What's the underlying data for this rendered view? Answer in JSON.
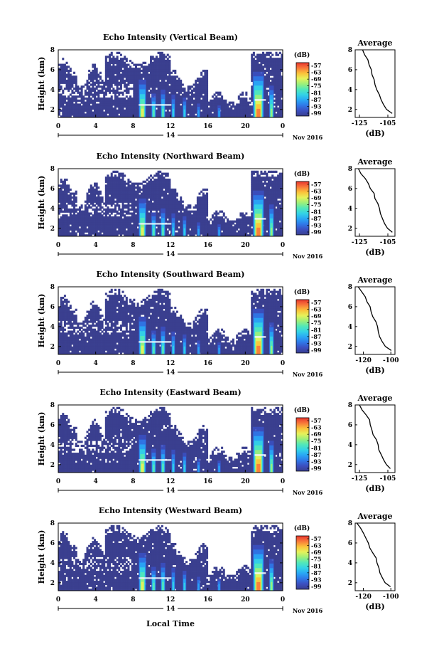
{
  "colors": {
    "background": "#ffffff",
    "low_echo": "#3a3f8f",
    "colormap": [
      "#3a3f8f",
      "#3b4fc0",
      "#2f78e8",
      "#29a7f5",
      "#33d3e6",
      "#52e8b8",
      "#9cf07a",
      "#e6f25a",
      "#fbc23a",
      "#f8783a",
      "#e8362e"
    ]
  },
  "x_axis_label": "Local Time",
  "date_label": "Nov 2016",
  "day_label": "14",
  "colorbar_unit": "(dB)",
  "colorbar_ticks": [
    "-57",
    "-63",
    "-69",
    "-75",
    "-81",
    "-87",
    "-93",
    "-99"
  ],
  "chart_data": [
    {
      "type": "heatmap",
      "title": "Echo Intensity (Vertical Beam)",
      "ylabel": "Height (km)",
      "x_ticks": [
        "0",
        "4",
        "8",
        "12",
        "16",
        "20",
        "0"
      ],
      "y_ticks": [
        "2",
        "4",
        "6",
        "8"
      ],
      "xlim": [
        0,
        24
      ],
      "ylim": [
        1.2,
        8
      ],
      "color_range_db": [
        -99,
        -57
      ],
      "profile": {
        "title": "Average",
        "xlabel": "(dB)",
        "x_ticks": [
          "-125",
          "-105"
        ],
        "xlim": [
          -128,
          -100
        ],
        "y_ticks": [
          "2",
          "4",
          "6",
          "8"
        ],
        "height": [
          1.6,
          2.0,
          2.5,
          3.0,
          3.5,
          4.0,
          4.5,
          5.0,
          5.5,
          6.0,
          6.5,
          7.0,
          7.5,
          8.0
        ],
        "value_db": [
          -102,
          -106,
          -108,
          -110,
          -111,
          -113,
          -114,
          -115,
          -116,
          -117,
          -118,
          -119,
          -121,
          -123
        ]
      }
    },
    {
      "type": "heatmap",
      "title": "Echo Intensity (Northward Beam)",
      "ylabel": "Height (km)",
      "x_ticks": [
        "0",
        "4",
        "8",
        "12",
        "16",
        "20",
        "0"
      ],
      "y_ticks": [
        "2",
        "4",
        "6",
        "8"
      ],
      "xlim": [
        0,
        24
      ],
      "ylim": [
        1.2,
        8
      ],
      "color_range_db": [
        -99,
        -57
      ],
      "profile": {
        "title": "Average",
        "xlabel": "(dB)",
        "x_ticks": [
          "-125",
          "-105"
        ],
        "xlim": [
          -128,
          -100
        ],
        "y_ticks": [
          "2",
          "4",
          "6",
          "8"
        ],
        "height": [
          1.6,
          2.0,
          2.5,
          3.0,
          3.5,
          4.0,
          4.5,
          5.0,
          5.5,
          6.0,
          6.5,
          7.0,
          7.5,
          8.0
        ],
        "value_db": [
          -102,
          -105,
          -107,
          -109,
          -110,
          -111,
          -112,
          -114,
          -115,
          -117,
          -119,
          -121,
          -124,
          -126
        ]
      }
    },
    {
      "type": "heatmap",
      "title": "Echo Intensity (Southward Beam)",
      "ylabel": "Height (km)",
      "x_ticks": [
        "0",
        "4",
        "8",
        "12",
        "16",
        "20",
        "0"
      ],
      "y_ticks": [
        "2",
        "4",
        "6",
        "8"
      ],
      "xlim": [
        0,
        24
      ],
      "ylim": [
        1.2,
        8
      ],
      "color_range_db": [
        -99,
        -57
      ],
      "profile": {
        "title": "Average",
        "xlabel": "(dB)",
        "x_ticks": [
          "-120",
          "-100"
        ],
        "xlim": [
          -126,
          -97
        ],
        "y_ticks": [
          "2",
          "4",
          "6",
          "8"
        ],
        "height": [
          1.6,
          2.0,
          2.5,
          3.0,
          3.5,
          4.0,
          4.5,
          5.0,
          5.5,
          6.0,
          6.5,
          7.0,
          7.5,
          8.0
        ],
        "value_db": [
          -100,
          -104,
          -106,
          -108,
          -109,
          -110,
          -111,
          -113,
          -114,
          -115,
          -117,
          -119,
          -121,
          -124
        ]
      }
    },
    {
      "type": "heatmap",
      "title": "Echo Intensity (Eastward Beam)",
      "ylabel": "Height (km)",
      "x_ticks": [
        "0",
        "4",
        "8",
        "12",
        "16",
        "20",
        "0"
      ],
      "y_ticks": [
        "2",
        "4",
        "6",
        "8"
      ],
      "xlim": [
        0,
        24
      ],
      "ylim": [
        1.2,
        8
      ],
      "color_range_db": [
        -99,
        -57
      ],
      "profile": {
        "title": "Average",
        "xlabel": "(dB)",
        "x_ticks": [
          "-125",
          "-105"
        ],
        "xlim": [
          -128,
          -100
        ],
        "y_ticks": [
          "2",
          "4",
          "6",
          "8"
        ],
        "height": [
          1.6,
          2.0,
          2.5,
          3.0,
          3.5,
          4.0,
          4.5,
          5.0,
          5.5,
          6.0,
          6.5,
          7.0,
          7.5,
          8.0
        ],
        "value_db": [
          -103,
          -106,
          -108,
          -110,
          -111,
          -112,
          -113,
          -115,
          -116,
          -117,
          -118,
          -120,
          -123,
          -125
        ]
      }
    },
    {
      "type": "heatmap",
      "title": "Echo Intensity (Westward Beam)",
      "ylabel": "Height (km)",
      "x_ticks": [
        "0",
        "4",
        "8",
        "12",
        "16",
        "20",
        "0"
      ],
      "y_ticks": [
        "2",
        "4",
        "6",
        "8"
      ],
      "xlim": [
        0,
        24
      ],
      "ylim": [
        1.2,
        8
      ],
      "color_range_db": [
        -99,
        -57
      ],
      "profile": {
        "title": "Average",
        "xlabel": "(dB)",
        "x_ticks": [
          "-120",
          "-100"
        ],
        "xlim": [
          -126,
          -97
        ],
        "y_ticks": [
          "2",
          "4",
          "6",
          "8"
        ],
        "height": [
          1.6,
          2.0,
          2.5,
          3.0,
          3.5,
          4.0,
          4.5,
          5.0,
          5.5,
          6.0,
          6.5,
          7.0,
          7.5,
          8.0
        ],
        "value_db": [
          -100,
          -104,
          -106,
          -108,
          -109,
          -110,
          -111,
          -113,
          -115,
          -116,
          -118,
          -120,
          -122,
          -125
        ]
      }
    }
  ]
}
